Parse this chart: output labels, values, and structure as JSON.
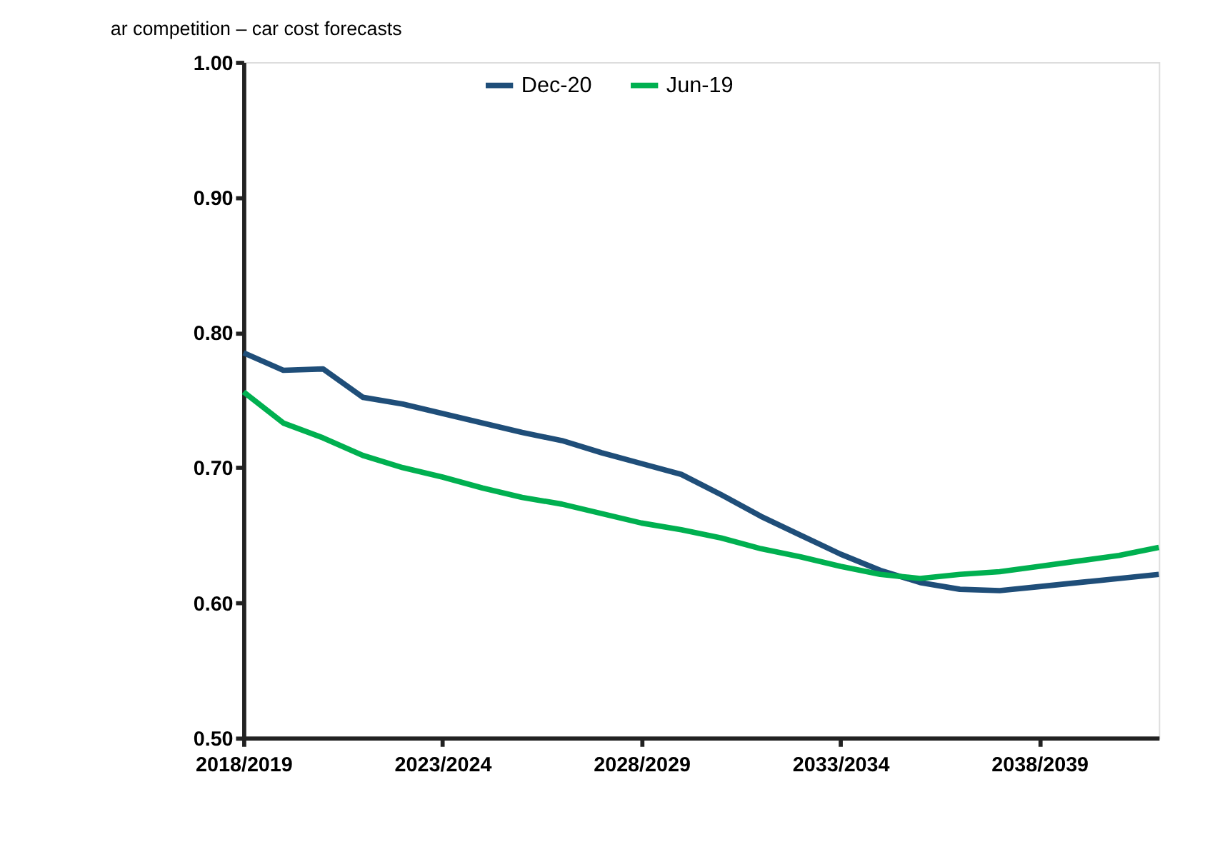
{
  "chart_data": {
    "type": "line",
    "title": "ar competition – car cost forecasts",
    "categories": [
      "2018/2019",
      null,
      null,
      null,
      null,
      "2023/2024",
      null,
      null,
      null,
      null,
      "2028/2029",
      null,
      null,
      null,
      null,
      "2033/2034",
      null,
      null,
      null,
      null,
      "2038/2039",
      null,
      null,
      null
    ],
    "series": [
      {
        "name": "Dec-20",
        "color": "#1f4e79",
        "values": [
          0.785,
          0.772,
          0.773,
          0.752,
          0.747,
          0.74,
          0.733,
          0.726,
          0.72,
          0.711,
          0.703,
          0.695,
          0.68,
          0.664,
          0.65,
          0.636,
          0.624,
          0.615,
          0.61,
          0.609,
          0.612,
          0.615,
          0.618,
          0.621
        ]
      },
      {
        "name": "Jun-19",
        "color": "#00b050",
        "values": [
          0.756,
          0.733,
          0.722,
          0.709,
          0.7,
          0.693,
          0.685,
          0.678,
          0.673,
          0.666,
          0.659,
          0.654,
          0.648,
          0.64,
          0.634,
          0.627,
          0.621,
          0.618,
          0.621,
          0.623,
          0.627,
          0.631,
          0.635,
          0.641
        ]
      }
    ],
    "ylim": [
      0.5,
      1.0
    ],
    "yticks": [
      {
        "value": 0.5,
        "label": "0.50"
      },
      {
        "value": 0.6,
        "label": "0.60"
      },
      {
        "value": 0.7,
        "label": "0.70"
      },
      {
        "value": 0.8,
        "label": "0.80"
      },
      {
        "value": 0.9,
        "label": "0.90"
      },
      {
        "value": 1.0,
        "label": "1.00"
      }
    ],
    "legend": "top",
    "grid": false,
    "marker": "none",
    "line_style": "solid"
  }
}
